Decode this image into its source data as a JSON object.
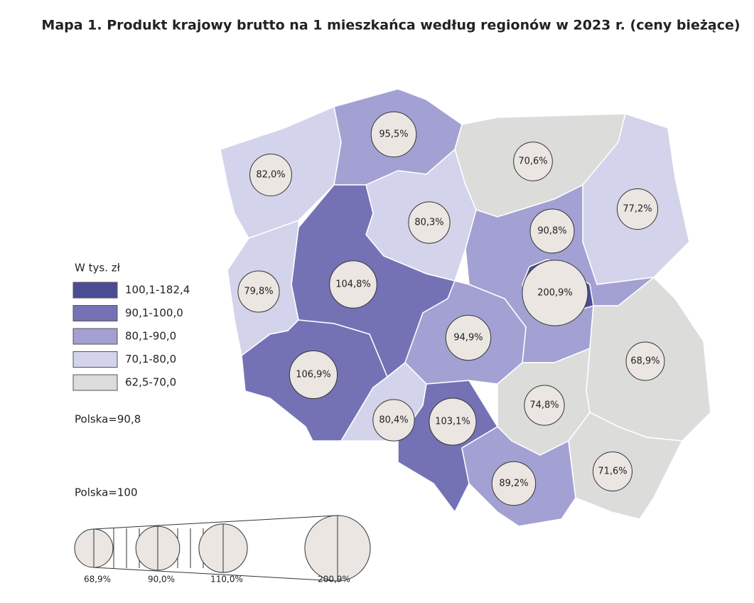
{
  "title": "Mapa 1. Produkt krajowy brutto na 1 mieszkańca według regionów w 2023 r. (ceny bieżące)",
  "legend": {
    "title": "W tys. zł",
    "classes": [
      {
        "label": "100,1-182,4",
        "color": "#4b4c94"
      },
      {
        "label": "90,1-100,0",
        "color": "#7472b5"
      },
      {
        "label": "80,1-90,0",
        "color": "#a3a1d3"
      },
      {
        "label": "70,1-80,0",
        "color": "#d3d3eb"
      },
      {
        "label": "62,5-70,0",
        "color": "#dcdddb"
      }
    ],
    "note": "Polska=90,8"
  },
  "regions": [
    {
      "value": 82.0,
      "label": "82,0%",
      "color": "#d3d3eb"
    },
    {
      "value": 95.5,
      "label": "95,5%",
      "color": "#a3a1d3"
    },
    {
      "value": 70.6,
      "label": "70,6%",
      "color": "#dcdddb"
    },
    {
      "value": 77.2,
      "label": "77,2%",
      "color": "#d3d3eb"
    },
    {
      "value": 80.3,
      "label": "80,3%",
      "color": "#d3d3eb"
    },
    {
      "value": 104.8,
      "label": "104,8%",
      "color": "#7472b5"
    },
    {
      "value": 79.8,
      "label": "79,8%",
      "color": "#d3d3eb"
    },
    {
      "value": 90.8,
      "label": "90,8%",
      "color": "#a3a1d3"
    },
    {
      "value": 94.9,
      "label": "94,9%",
      "color": "#a3a1d3"
    },
    {
      "value": 68.9,
      "label": "68,9%",
      "color": "#dcdddb"
    },
    {
      "value": 106.9,
      "label": "106,9%",
      "color": "#7472b5"
    },
    {
      "value": 80.4,
      "label": "80,4%",
      "color": "#d3d3eb"
    },
    {
      "value": 103.1,
      "label": "103,1%",
      "color": "#7472b5"
    },
    {
      "value": 74.8,
      "label": "74,8%",
      "color": "#dcdddb"
    },
    {
      "value": 89.2,
      "label": "89,2%",
      "color": "#a3a1d3"
    },
    {
      "value": 71.6,
      "label": "71,6%",
      "color": "#dcdddb"
    },
    {
      "value": 200.9,
      "label": "200,9%",
      "color": "#4b4c94"
    }
  ],
  "size_legend": {
    "title": "Polska=100",
    "items": [
      {
        "value": 68.9,
        "label": "68,9%"
      },
      {
        "value": 90.0,
        "label": "90,0%"
      },
      {
        "value": 110.0,
        "label": "110,0%"
      },
      {
        "value": 200.9,
        "label": "200,9%"
      }
    ]
  }
}
